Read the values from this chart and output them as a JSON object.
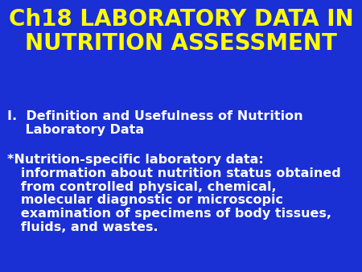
{
  "background_color": "#1a2fd4",
  "title_line1": "Ch18 LABORATORY DATA IN",
  "title_line2": "NUTRITION ASSESSMENT",
  "title_color": "#ffff00",
  "title_fontsize": 20,
  "title_fontweight": "bold",
  "body_color": "#ffffff",
  "body_fontsize": 11.5,
  "body_fontweight": "bold",
  "section_heading_line1": "I.  Definition and Usefulness of Nutrition",
  "section_heading_line2": "    Laboratory Data",
  "body_line1": "*Nutrition-specific laboratory data:",
  "body_line2": "   information about nutrition status obtained",
  "body_line3": "   from controlled physical, chemical,",
  "body_line4": "   molecular diagnostic or microscopic",
  "body_line5": "   examination of specimens of body tissues,",
  "body_line6": "   fluids, and wastes.",
  "fig_width": 4.5,
  "fig_height": 3.38,
  "dpi": 100
}
